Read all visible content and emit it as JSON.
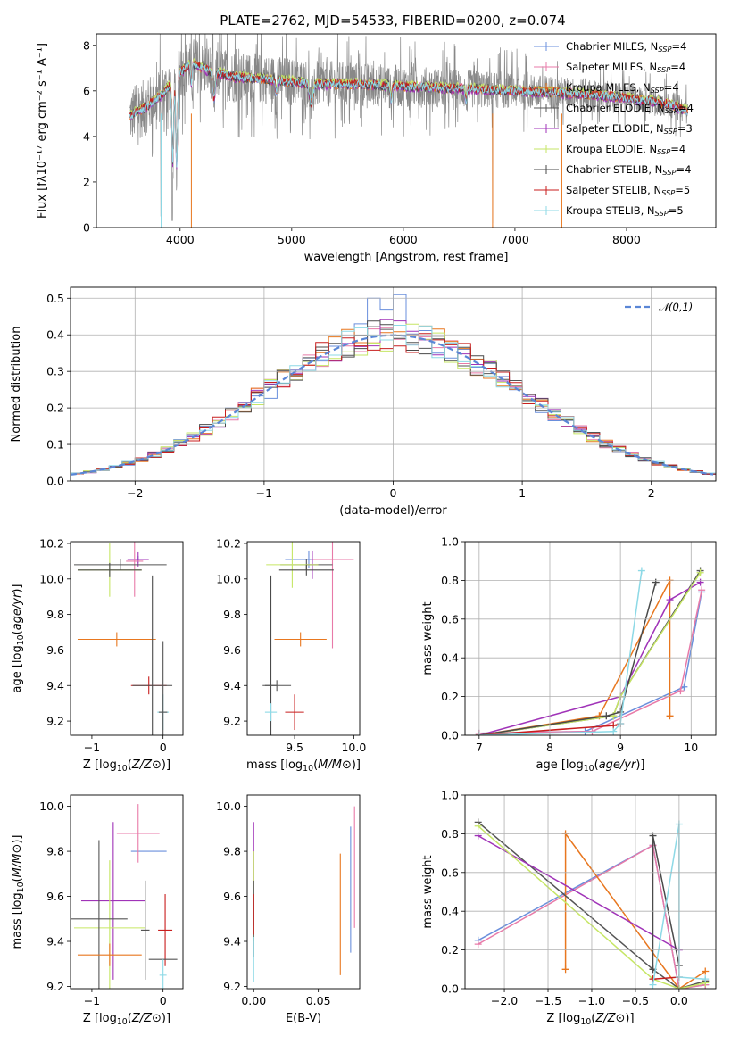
{
  "figure": {
    "title": "PLATE=2762, MJD=54533, FIBERID=0200, z=0.074"
  },
  "colors": {
    "series": [
      "#6a8fdc",
      "#e87aa8",
      "#e8771f",
      "#555555",
      "#a033b8",
      "#c6e665",
      "#4a4a4a",
      "#c81e1e",
      "#8dd9e6"
    ],
    "data": "#888888",
    "normal_curve": "#5a86d6",
    "grid": "#b0b0b0"
  },
  "chart_data": [
    {
      "id": "spectrum",
      "type": "line",
      "title": "PLATE=2762, MJD=54533, FIBERID=0200, z=0.074",
      "xlabel": "wavelength [Angstrom, rest frame]",
      "ylabel": "Flux [f$_\\lambda$10$^{-17}$ erg cm$^{-2}$ s$^{-1}$ A$^{-1}$]",
      "ylabel_display": "Flux [fλ10⁻¹⁷ erg cm⁻² s⁻¹ A⁻¹]",
      "xlim": [
        3250,
        8800
      ],
      "ylim": [
        0,
        8.5
      ],
      "xticks": [
        4000,
        5000,
        6000,
        7000,
        8000
      ],
      "yticks": [
        0,
        2,
        4,
        6,
        8
      ],
      "legend_position": "upper-right",
      "series": [
        {
          "name": "Chabrier MILES, N$_{SSP}$=4",
          "label": "Chabrier MILES, N",
          "sub": "SSP",
          "suffix": "=4"
        },
        {
          "name": "Salpeter MILES, N$_{SSP}$=4",
          "label": "Salpeter MILES, N",
          "sub": "SSP",
          "suffix": "=4"
        },
        {
          "name": "Kroupa MILES, N$_{SSP}$=4",
          "label": "Kroupa MILES, N",
          "sub": "SSP",
          "suffix": "=4"
        },
        {
          "name": "Chabrier ELODIE, N$_{SSP}$=4",
          "label": "Chabrier ELODIE, N",
          "sub": "SSP",
          "suffix": "=4"
        },
        {
          "name": "Salpeter ELODIE, N$_{SSP}$=3",
          "label": "Salpeter ELODIE, N",
          "sub": "SSP",
          "suffix": "=3"
        },
        {
          "name": "Kroupa ELODIE, N$_{SSP}$=4",
          "label": "Kroupa ELODIE, N",
          "sub": "SSP",
          "suffix": "=4"
        },
        {
          "name": "Chabrier STELIB, N$_{SSP}$=4",
          "label": "Chabrier STELIB, N",
          "sub": "SSP",
          "suffix": "=4"
        },
        {
          "name": "Salpeter STELIB, N$_{SSP}$=5",
          "label": "Salpeter STELIB, N",
          "sub": "SSP",
          "suffix": "=5"
        },
        {
          "name": "Kroupa STELIB, N$_{SSP}$=5",
          "label": "Kroupa STELIB, N",
          "sub": "SSP",
          "suffix": "=5"
        }
      ],
      "continuum_anchors": [
        [
          3550,
          4.9
        ],
        [
          3700,
          5.3
        ],
        [
          3850,
          5.9
        ],
        [
          4000,
          6.8
        ],
        [
          4100,
          7.2
        ],
        [
          4300,
          6.8
        ],
        [
          4500,
          6.6
        ],
        [
          4800,
          6.5
        ],
        [
          5200,
          6.3
        ],
        [
          5500,
          6.3
        ],
        [
          6000,
          6.2
        ],
        [
          6500,
          6.1
        ],
        [
          7000,
          6.0
        ],
        [
          7500,
          5.9
        ],
        [
          8000,
          5.7
        ],
        [
          8400,
          5.4
        ],
        [
          8550,
          5.1
        ]
      ],
      "model_features": [
        [
          3934,
          3.5,
          8
        ],
        [
          3969,
          3.9,
          8
        ],
        [
          4101,
          1.0,
          6
        ],
        [
          4304,
          1.2,
          10
        ],
        [
          4861,
          0.6,
          6
        ],
        [
          5175,
          0.9,
          15
        ],
        [
          5892,
          0.6,
          8
        ],
        [
          6563,
          0.5,
          8
        ]
      ],
      "data_dips": [
        [
          3830,
          0.5,
          5
        ],
        [
          3930,
          0.3,
          4
        ],
        [
          6800,
          0.2,
          2
        ]
      ],
      "noise": {
        "start": 3550,
        "end": 8550,
        "amplitude_blue": 1.6,
        "amplitude_red": 0.7
      }
    },
    {
      "id": "residuals",
      "type": "step-histogram",
      "xlabel": "(data-model)/error",
      "ylabel": "Normed distribution",
      "xlim": [
        -2.5,
        2.5
      ],
      "ylim": [
        0,
        0.53
      ],
      "xticks": [
        -2,
        -1,
        0,
        1,
        2
      ],
      "yticks": [
        0.0,
        0.1,
        0.2,
        0.3,
        0.4,
        0.5
      ],
      "legend_entry": "𝒩(0,1)",
      "legend_position": "upper-right",
      "bin_width": 0.1,
      "normal_curve": {
        "mean": 0,
        "sigma": 1
      },
      "peak_bins": {
        "0.1": 0.51,
        "-0.1": 0.5,
        "0.0": 0.47,
        "-0.2": 0.43
      }
    },
    {
      "id": "Z-age",
      "type": "errorbar",
      "xlabel": "Z [log$_{10}$($Z/Z_\\odot$)]",
      "ylabel": "age  [log$_{10}$($age/yr$)]",
      "xlim": [
        -1.3,
        0.28
      ],
      "ylim": [
        9.12,
        10.21
      ],
      "xticks": [
        -1,
        0
      ],
      "yticks": [
        9.2,
        9.4,
        9.6,
        9.8,
        10.0,
        10.2
      ],
      "points": [
        {
          "s": 0,
          "x": -0.35,
          "y": 10.11,
          "xe": 0.0,
          "ye": 0.02
        },
        {
          "s": 4,
          "x": -0.35,
          "y": 10.11,
          "xe": 0.15,
          "ye": 0.04
        },
        {
          "s": 1,
          "x": -0.4,
          "y": 10.1,
          "xe": 0.12,
          "ye": 0.2
        },
        {
          "s": 5,
          "x": -0.75,
          "y": 10.05,
          "xe": 0.45,
          "ye": 0.15
        },
        {
          "s": 3,
          "x": -0.6,
          "y": 10.08,
          "xe": 0.65,
          "ye": 0.03
        },
        {
          "s": 6,
          "x": -0.75,
          "y": 10.05,
          "xe": 0.45,
          "ye": 0.04
        },
        {
          "s": 2,
          "x": -0.65,
          "y": 9.66,
          "xe": 0.55,
          "ye": 0.04
        },
        {
          "s": 7,
          "x": -0.2,
          "y": 9.4,
          "xe": 0.25,
          "ye": 0.05
        },
        {
          "s": 6,
          "x": -0.15,
          "y": 9.4,
          "xe": 0.28,
          "ye": 0.62
        },
        {
          "s": 8,
          "x": 0.0,
          "y": 9.25,
          "xe": 0.08,
          "ye": 0.1
        },
        {
          "s": 3,
          "x": 0.0,
          "y": 9.25,
          "xe": 0.06,
          "ye": 0.4
        }
      ]
    },
    {
      "id": "mass-age",
      "type": "errorbar",
      "xlabel": "mass [log$_{10}$($M/M_\\odot$)]",
      "ylabel": "",
      "xlim": [
        9.1,
        10.05
      ],
      "ylim": [
        9.12,
        10.21
      ],
      "xticks": [
        9.5,
        10.0
      ],
      "yticks": [
        9.2,
        9.4,
        9.6,
        9.8,
        10.0,
        10.2
      ],
      "points": [
        {
          "s": 0,
          "x": 9.62,
          "y": 10.11,
          "xe": 0.2,
          "ye": 0.05
        },
        {
          "s": 1,
          "x": 9.82,
          "y": 10.11,
          "xe": 0.18,
          "ye": 0.5
        },
        {
          "s": 4,
          "x": 9.65,
          "y": 10.08,
          "xe": 0.05,
          "ye": 0.08
        },
        {
          "s": 3,
          "x": 9.6,
          "y": 10.08,
          "xe": 0.22,
          "ye": 0.03
        },
        {
          "s": 5,
          "x": 9.48,
          "y": 10.08,
          "xe": 0.22,
          "ye": 0.13
        },
        {
          "s": 6,
          "x": 9.6,
          "y": 10.05,
          "xe": 0.23,
          "ye": 0.03
        },
        {
          "s": 6,
          "x": 9.3,
          "y": 9.4,
          "xe": 0.05,
          "ye": 0.62
        },
        {
          "s": 2,
          "x": 9.55,
          "y": 9.66,
          "xe": 0.22,
          "ye": 0.04
        },
        {
          "s": 3,
          "x": 9.35,
          "y": 9.4,
          "xe": 0.12,
          "ye": 0.03
        },
        {
          "s": 7,
          "x": 9.5,
          "y": 9.25,
          "xe": 0.08,
          "ye": 0.1
        },
        {
          "s": 8,
          "x": 9.3,
          "y": 9.25,
          "xe": 0.05,
          "ye": 0.05
        }
      ]
    },
    {
      "id": "age-massweight",
      "type": "line",
      "xlabel": "age  [log$_{10}$($age/yr$)]",
      "ylabel": "mass weight",
      "xlim": [
        6.8,
        10.35
      ],
      "ylim": [
        0,
        1
      ],
      "xticks": [
        7,
        8,
        9,
        10
      ],
      "yticks": [
        0.0,
        0.2,
        0.4,
        0.6,
        0.8,
        1.0
      ],
      "grid": true,
      "series": [
        {
          "s": 0,
          "x": [
            7.0,
            8.5,
            9.9,
            10.15
          ],
          "y": [
            0.01,
            0.02,
            0.25,
            0.74
          ]
        },
        {
          "s": 1,
          "x": [
            7.0,
            8.6,
            9.85,
            10.15
          ],
          "y": [
            0.01,
            0.02,
            0.23,
            0.75
          ]
        },
        {
          "s": 2,
          "x": [
            7.0,
            8.7,
            9.7,
            9.7
          ],
          "y": [
            0.0,
            0.1,
            0.8,
            0.1
          ]
        },
        {
          "s": 3,
          "x": [
            7.0,
            8.9,
            9.0,
            10.13
          ],
          "y": [
            0.0,
            0.1,
            0.2,
            0.85
          ]
        },
        {
          "s": 4,
          "x": [
            7.0,
            9.0,
            9.7,
            10.13
          ],
          "y": [
            0.0,
            0.2,
            0.7,
            0.79
          ]
        },
        {
          "s": 5,
          "x": [
            7.0,
            8.9,
            9.0,
            10.13
          ],
          "y": [
            0.0,
            0.1,
            0.2,
            0.84
          ]
        },
        {
          "s": 6,
          "x": [
            7.0,
            8.8,
            9.0,
            9.5
          ],
          "y": [
            0.0,
            0.1,
            0.12,
            0.79
          ]
        },
        {
          "s": 7,
          "x": [
            7.0,
            8.9,
            9.0
          ],
          "y": [
            0.0,
            0.05,
            0.06
          ]
        },
        {
          "s": 8,
          "x": [
            7.0,
            8.9,
            9.0,
            9.3
          ],
          "y": [
            0.0,
            0.02,
            0.06,
            0.85
          ]
        }
      ]
    },
    {
      "id": "Z-mass",
      "type": "errorbar",
      "xlabel": "Z [log$_{10}$($Z/Z_\\odot$)]",
      "ylabel": "mass [log$_{10}$($M/M_\\odot$)]",
      "xlim": [
        -1.3,
        0.28
      ],
      "ylim": [
        9.19,
        10.05
      ],
      "xticks": [
        -1,
        0
      ],
      "yticks": [
        9.2,
        9.4,
        9.6,
        9.8,
        10.0
      ],
      "points": [
        {
          "s": 0,
          "x": -0.2,
          "y": 9.8,
          "xe": 0.25,
          "ye": 0.0
        },
        {
          "s": 1,
          "x": -0.35,
          "y": 9.88,
          "xe": 0.3,
          "ye": 0.13
        },
        {
          "s": 4,
          "x": -0.7,
          "y": 9.58,
          "xe": 0.45,
          "ye": 0.35
        },
        {
          "s": 5,
          "x": -0.75,
          "y": 9.46,
          "xe": 0.5,
          "ye": 0.3
        },
        {
          "s": 3,
          "x": -0.9,
          "y": 9.5,
          "xe": 0.4,
          "ye": 0.35
        },
        {
          "s": 2,
          "x": -0.75,
          "y": 9.34,
          "xe": 0.45,
          "ye": 0.05
        },
        {
          "s": 6,
          "x": -0.25,
          "y": 9.45,
          "xe": 0.06,
          "ye": 0.22
        },
        {
          "s": 7,
          "x": 0.03,
          "y": 9.45,
          "xe": 0.1,
          "ye": 0.16
        },
        {
          "s": 3,
          "x": 0.0,
          "y": 9.32,
          "xe": 0.2,
          "ye": 0.0
        },
        {
          "s": 8,
          "x": 0.0,
          "y": 9.25,
          "xe": 0.05,
          "ye": 0.07
        }
      ]
    },
    {
      "id": "ebv-mass",
      "type": "errorbar",
      "xlabel": "E(B-V)",
      "ylabel": "",
      "xlim": [
        -0.005,
        0.082
      ],
      "ylim": [
        9.19,
        10.05
      ],
      "xticks": [
        0.0,
        0.05
      ],
      "xtick_labels": [
        "0.00",
        "0.05"
      ],
      "yticks": [
        9.2,
        9.4,
        9.6,
        9.8,
        10.0
      ],
      "points": [
        {
          "s": 4,
          "x": 0.0,
          "y": 9.7,
          "xe": 0,
          "ye": 0.23
        },
        {
          "s": 5,
          "x": 0.0,
          "y": 9.6,
          "xe": 0,
          "ye": 0.2
        },
        {
          "s": 3,
          "x": 0.0,
          "y": 9.5,
          "xe": 0,
          "ye": 0.17
        },
        {
          "s": 7,
          "x": 0.0,
          "y": 9.52,
          "xe": 0,
          "ye": 0.09
        },
        {
          "s": 8,
          "x": 0.0,
          "y": 9.32,
          "xe": 0,
          "ye": 0.1
        },
        {
          "s": 2,
          "x": 0.067,
          "y": 9.52,
          "xe": 0,
          "ye": 0.27
        },
        {
          "s": 0,
          "x": 0.075,
          "y": 9.63,
          "xe": 0,
          "ye": 0.28
        },
        {
          "s": 1,
          "x": 0.078,
          "y": 9.73,
          "xe": 0,
          "ye": 0.27
        }
      ]
    },
    {
      "id": "Z-massweight",
      "type": "line",
      "xlabel": "Z [log$_{10}$($Z/Z_\\odot$)]",
      "ylabel": "mass weight",
      "xlim": [
        -2.45,
        0.42
      ],
      "ylim": [
        0,
        1
      ],
      "xticks": [
        -2.0,
        -1.5,
        -1.0,
        -0.5,
        0.0
      ],
      "xtick_labels": [
        "−2.0",
        "−1.5",
        "−1.0",
        "−0.5",
        "0.0"
      ],
      "yticks": [
        0.0,
        0.2,
        0.4,
        0.6,
        0.8,
        1.0
      ],
      "grid": true,
      "series": [
        {
          "s": 0,
          "x": [
            -2.3,
            -0.3,
            0.0,
            0.3
          ],
          "y": [
            0.25,
            0.74,
            0.0,
            0.02
          ]
        },
        {
          "s": 1,
          "x": [
            -2.3,
            -0.3,
            0.0,
            0.3
          ],
          "y": [
            0.23,
            0.74,
            0.0,
            0.02
          ]
        },
        {
          "s": 2,
          "x": [
            -1.3,
            -1.3,
            0.0,
            0.3
          ],
          "y": [
            0.1,
            0.8,
            0.0,
            0.09
          ]
        },
        {
          "s": 3,
          "x": [
            -2.3,
            -0.3,
            0.0,
            0.3
          ],
          "y": [
            0.86,
            0.1,
            0.0,
            0.04
          ]
        },
        {
          "s": 4,
          "x": [
            -2.3,
            0.0
          ],
          "y": [
            0.79,
            0.2
          ]
        },
        {
          "s": 5,
          "x": [
            -2.3,
            -0.3,
            0.0,
            0.3
          ],
          "y": [
            0.84,
            0.05,
            0.0,
            0.03
          ]
        },
        {
          "s": 6,
          "x": [
            -0.3,
            -0.3,
            0.0
          ],
          "y": [
            0.1,
            0.79,
            0.12
          ]
        },
        {
          "s": 7,
          "x": [
            -0.3,
            0.0
          ],
          "y": [
            0.05,
            0.06
          ]
        },
        {
          "s": 8,
          "x": [
            -0.3,
            0.0,
            0.0,
            0.3
          ],
          "y": [
            0.02,
            0.85,
            0.06,
            0.05
          ]
        }
      ]
    }
  ]
}
